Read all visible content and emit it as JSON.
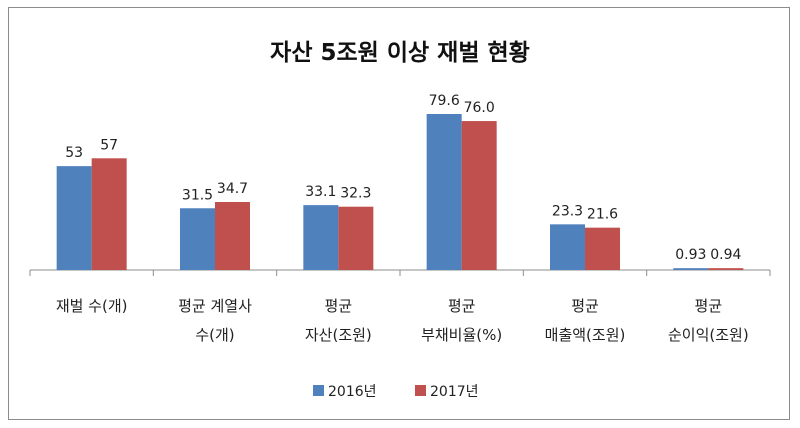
{
  "chart_data": {
    "type": "bar",
    "title": "자산 5조원 이상 재벌 현황",
    "categories": [
      [
        "재벌 수(개)"
      ],
      [
        "평균 계열사",
        "수(개)"
      ],
      [
        "평균",
        "자산(조원)"
      ],
      [
        "평균",
        "부채비율(%)"
      ],
      [
        "평균",
        "매출액(조원)"
      ],
      [
        "평균",
        "순이익(조원)"
      ]
    ],
    "series": [
      {
        "name": "2016년",
        "color": "#4f81bd",
        "values": [
          53,
          31.5,
          33.1,
          79.6,
          23.3,
          0.93
        ]
      },
      {
        "name": "2017년",
        "color": "#c0504d",
        "values": [
          57,
          34.7,
          32.3,
          76.0,
          21.6,
          0.94
        ]
      }
    ],
    "value_labels": [
      [
        "53",
        "31.5",
        "33.1",
        "79.6",
        "23.3",
        "0.93"
      ],
      [
        "57",
        "34.7",
        "32.3",
        "76.0",
        "21.6",
        "0.94"
      ]
    ],
    "ylim": [
      0,
      85
    ],
    "grid": false,
    "legend_position": "bottom"
  }
}
